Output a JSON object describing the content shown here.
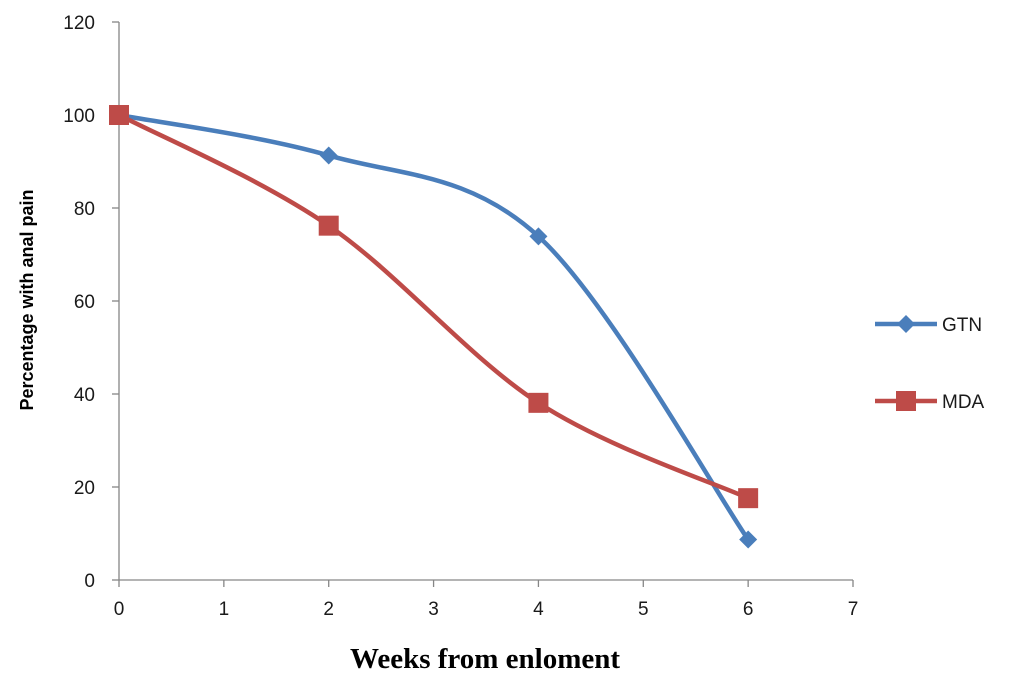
{
  "chart_data": {
    "type": "line",
    "title": "",
    "xlabel": "Weeks from enloment",
    "ylabel": "Percentage with anal pain",
    "xlim": [
      0,
      7
    ],
    "ylim": [
      0,
      120
    ],
    "xticks": [
      "0",
      "1",
      "2",
      "3",
      "4",
      "5",
      "6",
      "7"
    ],
    "yticks": [
      "0",
      "20",
      "40",
      "60",
      "80",
      "100",
      "120"
    ],
    "grid": false,
    "legend_position": "right",
    "smoothed": true,
    "series": [
      {
        "name": "GTN",
        "color": "#4a7ebb",
        "marker": "diamond",
        "x": [
          0,
          2,
          4,
          6
        ],
        "y": [
          100,
          91.3,
          73.9,
          8.7
        ]
      },
      {
        "name": "MDA",
        "color": "#be4b48",
        "marker": "square",
        "x": [
          0,
          2,
          4,
          6
        ],
        "y": [
          100,
          76.2,
          38.1,
          17.6
        ]
      }
    ]
  }
}
